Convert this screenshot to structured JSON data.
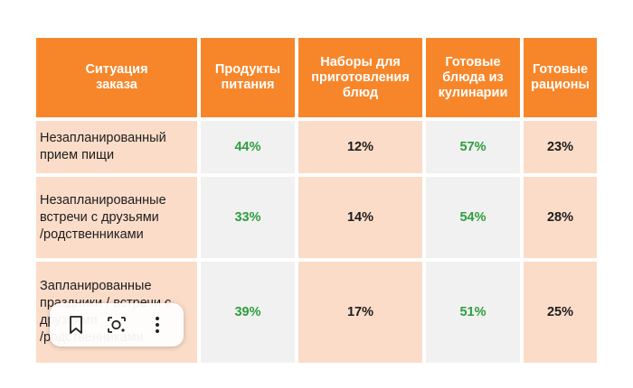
{
  "table": {
    "headers": [
      "Ситуация\nзаказа",
      "Продукты\nпитания",
      "Наборы для\nприготовления\nблюд",
      "Готовые\nблюда из\nкулинарии",
      "Готовые\nрационы"
    ],
    "rows": [
      {
        "label": "Незапланированный\nприем пищи",
        "values": [
          "44%",
          "12%",
          "57%",
          "23%"
        ]
      },
      {
        "label": "Незапланированные\nвстречи с друзьями\n/родственниками",
        "values": [
          "33%",
          "14%",
          "54%",
          "28%"
        ]
      },
      {
        "label": "Запланированные\nпраздники / встречи с\nдрузьями\n/родственниками",
        "values": [
          "39%",
          "17%",
          "51%",
          "25%"
        ]
      }
    ]
  },
  "colors": {
    "header_bg": "#f7862a",
    "peach": "#fbdcc8",
    "gray": "#f1f1f1",
    "green_value": "#2e9e3e"
  },
  "toolbar": {
    "buttons": [
      "bookmark-icon",
      "lens-search-icon",
      "more-vert-icon"
    ]
  }
}
